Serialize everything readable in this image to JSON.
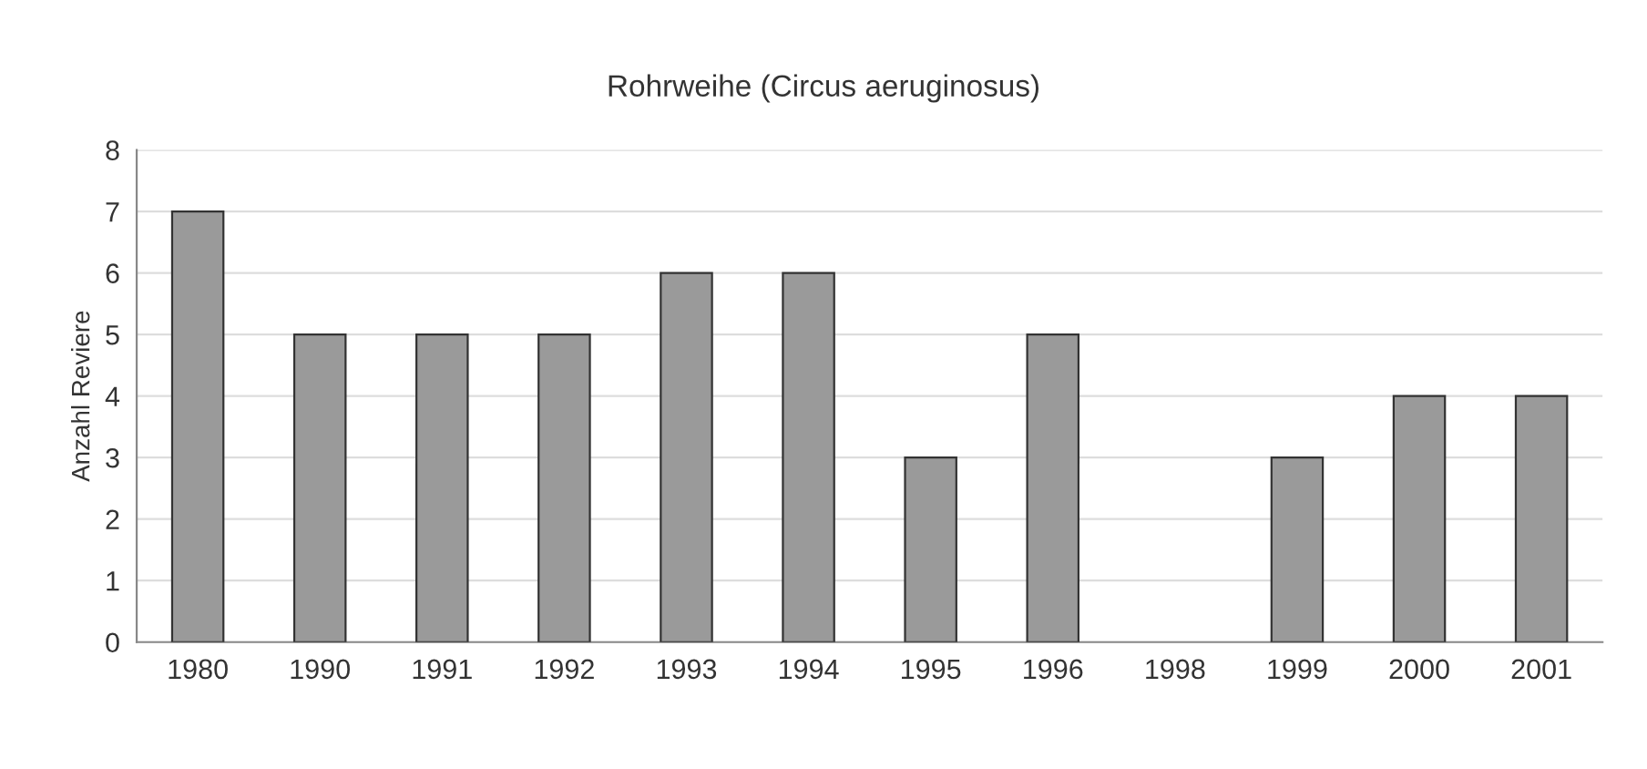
{
  "chart_data": {
    "type": "bar",
    "title": "Rohrweihe (Circus aeruginosus)",
    "ylabel": "Anzahl Reviere",
    "categories": [
      "1980",
      "1990",
      "1991",
      "1992",
      "1993",
      "1994",
      "1995",
      "1996",
      "1998",
      "1999",
      "2000",
      "2001"
    ],
    "values": [
      7,
      5,
      5,
      5,
      6,
      6,
      3,
      5,
      0,
      3,
      4,
      4
    ],
    "color": "#9a9a9a",
    "ylim": [
      0,
      8
    ],
    "yticks": [
      0,
      1,
      2,
      3,
      4,
      5,
      6,
      7,
      8
    ],
    "grid": "y"
  }
}
